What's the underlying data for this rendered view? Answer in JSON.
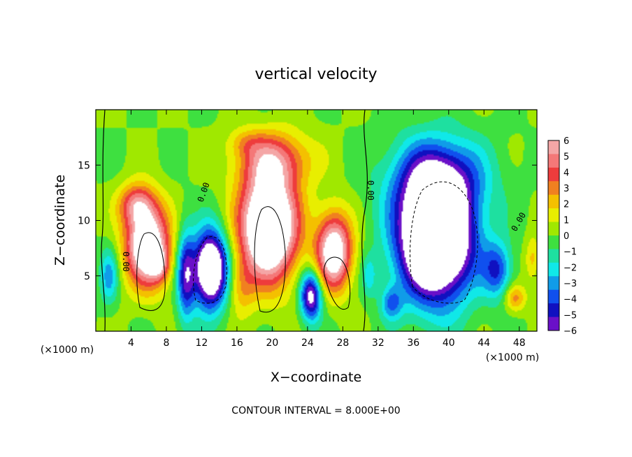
{
  "chart_data": {
    "type": "heatmap",
    "title": "vertical velocity",
    "xlabel": "X−coordinate",
    "ylabel": "Z−coordinate",
    "x_unit_label": "(×1000 m)",
    "y_unit_label": "(×1000 m)",
    "footer": "CONTOUR INTERVAL = 8.000E+00",
    "xlim": [
      0,
      50
    ],
    "ylim": [
      0,
      20
    ],
    "x_ticks": [
      4,
      8,
      12,
      16,
      20,
      24,
      28,
      32,
      36,
      40,
      44,
      48
    ],
    "y_ticks": [
      5,
      10,
      15
    ],
    "colorbar": {
      "ticks": [
        "6",
        "5",
        "4",
        "3",
        "2",
        "1",
        "0",
        "−1",
        "−2",
        "−3",
        "−4",
        "−5",
        "−6"
      ],
      "range": [
        -6,
        6
      ],
      "colors": [
        "#f4a6a6",
        "#f47878",
        "#ee3c3c",
        "#f08020",
        "#f4c000",
        "#e8ee00",
        "#a0e800",
        "#3ee040",
        "#1ee0a0",
        "#10e8e8",
        "#109ce8",
        "#1050ee",
        "#1010c0",
        "#6a10c8"
      ]
    },
    "contour_labels": [
      "0.00",
      "0.00",
      "0.00",
      "0.00"
    ],
    "cells": [
      {
        "x": 5.8,
        "z": 7.8,
        "w": 2.4,
        "h": 3.6,
        "amp": 9
      },
      {
        "x": 4.6,
        "z": 11.5,
        "w": 2.0,
        "h": 1.8,
        "amp": 4
      },
      {
        "x": 7.2,
        "z": 6.0,
        "w": 1.1,
        "h": 1.5,
        "amp": 3
      },
      {
        "x": 10.2,
        "z": 5.0,
        "w": 1.0,
        "h": 4.0,
        "amp": -5
      },
      {
        "x": 13.0,
        "z": 5.6,
        "w": 1.9,
        "h": 3.4,
        "amp": -10
      },
      {
        "x": 19.6,
        "z": 9.5,
        "w": 3.2,
        "h": 4.8,
        "amp": 11
      },
      {
        "x": 20.2,
        "z": 15.5,
        "w": 4.2,
        "h": 2.5,
        "amp": 4
      },
      {
        "x": 24.4,
        "z": 3.2,
        "w": 1.2,
        "h": 2.2,
        "amp": -7
      },
      {
        "x": 27.0,
        "z": 7.2,
        "w": 2.0,
        "h": 3.4,
        "amp": 8
      },
      {
        "x": 31.0,
        "z": 5.0,
        "w": 0.8,
        "h": 1.8,
        "amp": -2
      },
      {
        "x": 38.5,
        "z": 8.5,
        "w": 4.2,
        "h": 5.5,
        "amp": -13
      },
      {
        "x": 38.8,
        "z": 14.0,
        "w": 5.5,
        "h": 3.6,
        "amp": -4
      },
      {
        "x": 45.5,
        "z": 5.5,
        "w": 1.6,
        "h": 2.5,
        "amp": -4
      },
      {
        "x": 47.5,
        "z": 3.0,
        "w": 1.2,
        "h": 1.2,
        "amp": 3
      },
      {
        "x": 1.5,
        "z": 5.0,
        "w": 1.0,
        "h": 2.5,
        "amp": -3
      },
      {
        "x": 49.5,
        "z": 6.5,
        "w": 0.8,
        "h": 2.0,
        "amp": 2
      },
      {
        "x": 16.5,
        "z": 4.0,
        "w": 1.5,
        "h": 2.5,
        "amp": 2
      },
      {
        "x": 33.5,
        "z": 2.5,
        "w": 1.2,
        "h": 1.5,
        "amp": -3
      },
      {
        "x": 17.0,
        "z": 17.0,
        "w": 2.0,
        "h": 1.2,
        "amp": 1.5
      }
    ]
  }
}
